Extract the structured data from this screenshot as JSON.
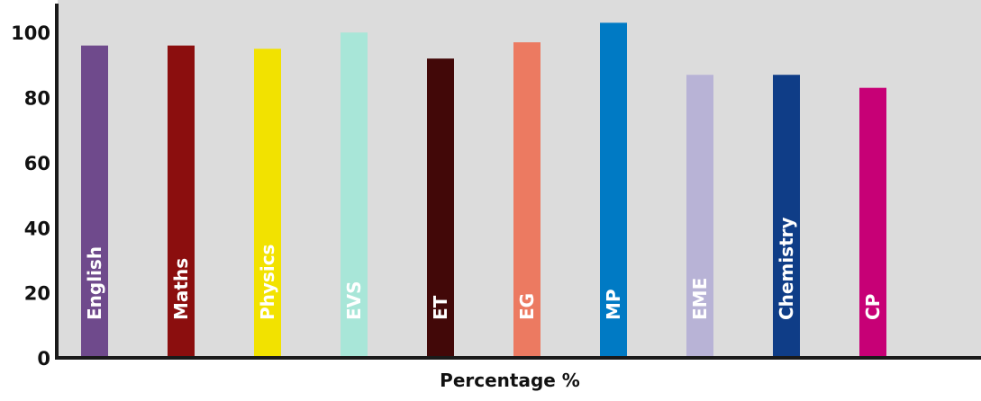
{
  "chart_data": {
    "type": "bar",
    "title": "",
    "xlabel": "Percentage %",
    "ylabel": "",
    "ylim": [
      0,
      110
    ],
    "yticks": [
      0,
      20,
      40,
      60,
      80,
      100
    ],
    "grid": false,
    "legend": "none",
    "plot_background": "#dcdcdc",
    "categories": [
      "English",
      "Maths",
      "Physics",
      "EVS",
      "ET",
      "EG",
      "MP",
      "EME",
      "Chemistry",
      "CP"
    ],
    "values": [
      96,
      96,
      95,
      100,
      92,
      97,
      103,
      87,
      87,
      83
    ],
    "colors": [
      "#6f4a8c",
      "#8b0e0e",
      "#f2e200",
      "#a8e6d8",
      "#420808",
      "#ec7a61",
      "#007ac4",
      "#b8b3d6",
      "#0f3d87",
      "#c70076"
    ]
  }
}
